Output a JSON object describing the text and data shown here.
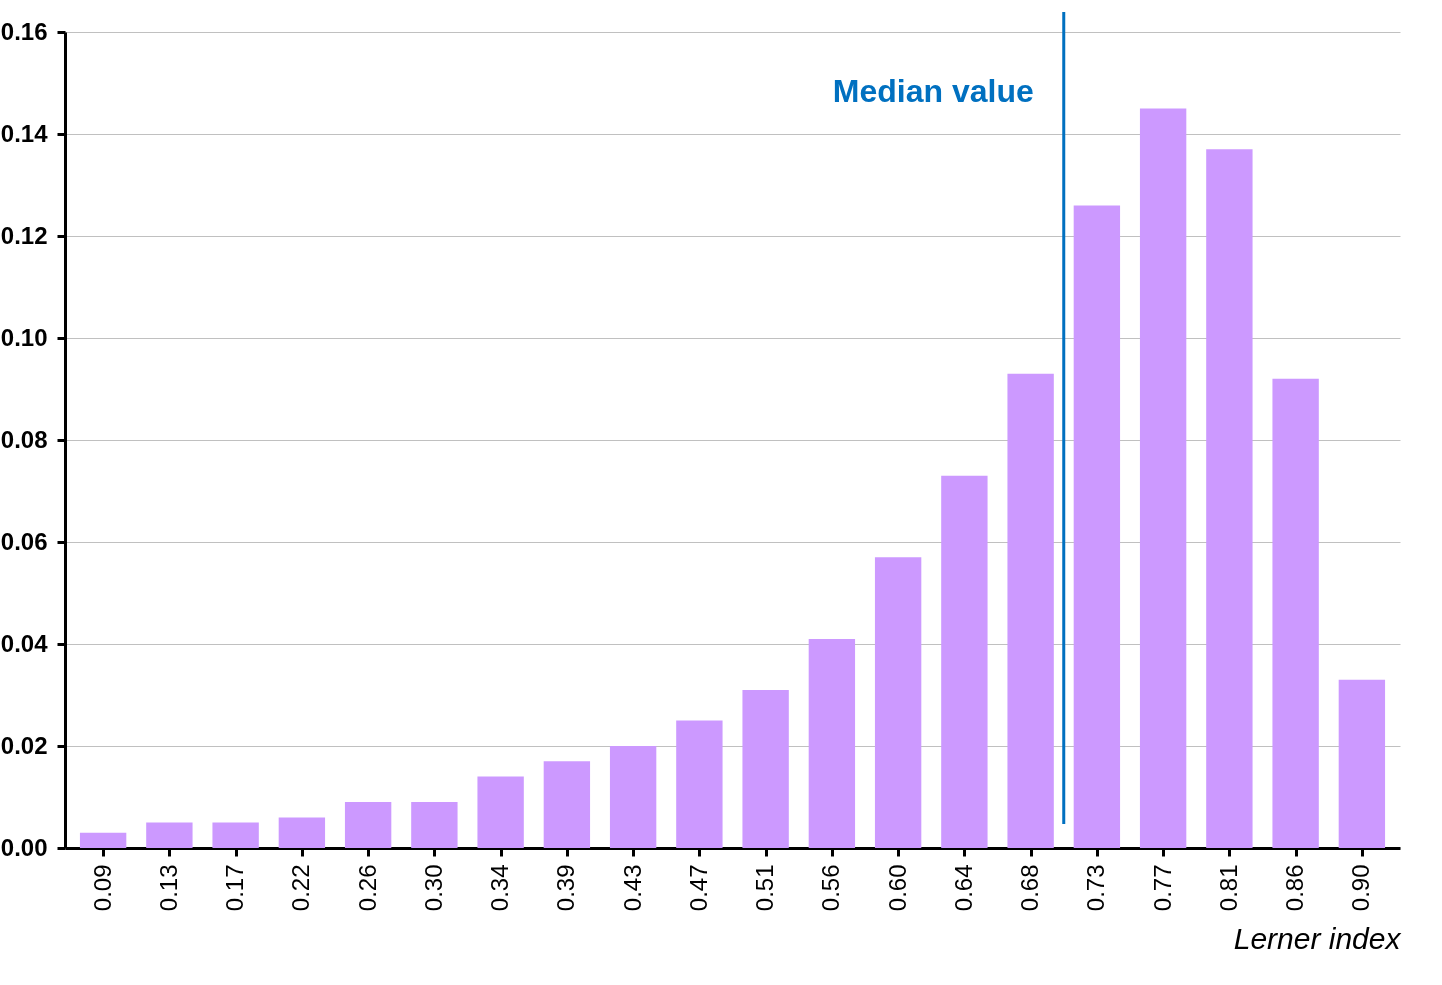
{
  "chart_data": {
    "type": "bar",
    "xlabel": "Lerner index",
    "categories": [
      "0.09",
      "0.13",
      "0.17",
      "0.22",
      "0.26",
      "0.30",
      "0.34",
      "0.39",
      "0.43",
      "0.47",
      "0.51",
      "0.56",
      "0.60",
      "0.64",
      "0.68",
      "0.73",
      "0.77",
      "0.81",
      "0.86",
      "0.90"
    ],
    "series": [
      {
        "color": "#cc99ff",
        "values": [
          0.003,
          0.005,
          0.005,
          0.006,
          0.009,
          0.009,
          0.014,
          0.017,
          0.02,
          0.025,
          0.031,
          0.041,
          0.057,
          0.073,
          0.093,
          0.126,
          0.145,
          0.137,
          0.092,
          0.033
        ]
      }
    ],
    "ylim": [
      0,
      0.16
    ],
    "yticks": [
      {
        "value": 0,
        "label": "0.00"
      },
      {
        "value": 0.02,
        "label": "0.02"
      },
      {
        "value": 0.04,
        "label": "0.04"
      },
      {
        "value": 0.06,
        "label": "0.06"
      },
      {
        "value": 0.08,
        "label": "0.08"
      },
      {
        "value": 0.1,
        "label": "0.10"
      },
      {
        "value": 0.12,
        "label": "0.12"
      },
      {
        "value": 0.14,
        "label": "0.14"
      },
      {
        "value": 0.16,
        "label": "0.16"
      }
    ],
    "annotations": [
      "Median value"
    ],
    "grid": "y"
  }
}
